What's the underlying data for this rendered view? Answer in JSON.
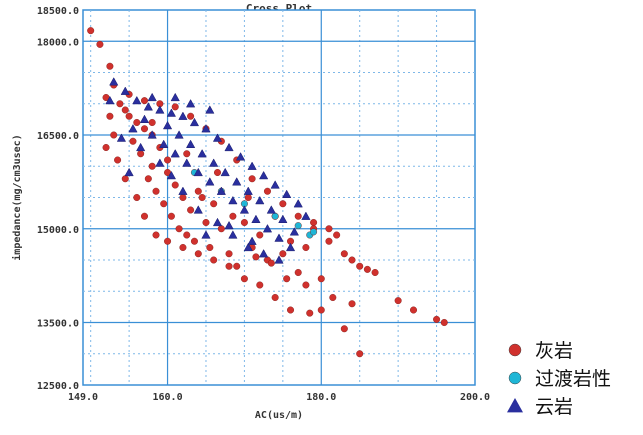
{
  "chart_data": {
    "type": "scatter",
    "title": "Cross Plot",
    "xlabel": "AC(us/m)",
    "ylabel": "impedance(mg/cm3usec)",
    "xlim": [
      149.0,
      200.0
    ],
    "ylim": [
      12500.0,
      18500.0
    ],
    "x_ticks": [
      "149.0",
      "160.0",
      "180.0",
      "200.0"
    ],
    "y_ticks": [
      "18500.0",
      "18000.0",
      "16500.0",
      "15000.0",
      "13500.0",
      "12500.0"
    ],
    "grid": true,
    "legend_position": "bottom-right-outside",
    "series": [
      {
        "name": "灰岩",
        "marker": "circle",
        "color": "#d0312d",
        "points": [
          [
            150.0,
            18170
          ],
          [
            151.2,
            17950
          ],
          [
            152.5,
            17600
          ],
          [
            153.0,
            17300
          ],
          [
            152.0,
            17100
          ],
          [
            153.8,
            17000
          ],
          [
            154.5,
            16900
          ],
          [
            155.0,
            16800
          ],
          [
            156.0,
            16700
          ],
          [
            155.5,
            16400
          ],
          [
            157.0,
            16600
          ],
          [
            156.5,
            16200
          ],
          [
            158.0,
            16500
          ],
          [
            158.0,
            16000
          ],
          [
            157.5,
            15800
          ],
          [
            159.0,
            16300
          ],
          [
            158.5,
            15600
          ],
          [
            159.5,
            15400
          ],
          [
            160.0,
            15900
          ],
          [
            160.5,
            15200
          ],
          [
            161.0,
            15700
          ],
          [
            161.5,
            15000
          ],
          [
            162.0,
            15500
          ],
          [
            162.5,
            14900
          ],
          [
            163.0,
            15300
          ],
          [
            163.5,
            14800
          ],
          [
            164.0,
            15600
          ],
          [
            165.0,
            15100
          ],
          [
            165.5,
            14700
          ],
          [
            166.0,
            15400
          ],
          [
            167.0,
            15000
          ],
          [
            168.0,
            14600
          ],
          [
            168.5,
            15200
          ],
          [
            169.0,
            14400
          ],
          [
            170.0,
            15100
          ],
          [
            171.0,
            14700
          ],
          [
            172.0,
            14900
          ],
          [
            173.0,
            14500
          ],
          [
            174.0,
            15200
          ],
          [
            175.0,
            14600
          ],
          [
            176.0,
            14800
          ],
          [
            177.0,
            14300
          ],
          [
            178.0,
            14700
          ],
          [
            179.0,
            15000
          ],
          [
            180.0,
            14200
          ],
          [
            181.0,
            14800
          ],
          [
            182.0,
            14900
          ],
          [
            183.0,
            14600
          ],
          [
            184.0,
            14500
          ],
          [
            185.0,
            14400
          ],
          [
            186.0,
            14350
          ],
          [
            187.0,
            14300
          ],
          [
            180.0,
            13700
          ],
          [
            181.5,
            13900
          ],
          [
            178.5,
            13650
          ],
          [
            176.0,
            13700
          ],
          [
            183.0,
            13400
          ],
          [
            185.0,
            13000
          ],
          [
            184.0,
            13800
          ],
          [
            174.0,
            13900
          ],
          [
            172.0,
            14100
          ],
          [
            170.0,
            14200
          ],
          [
            168.0,
            14400
          ],
          [
            166.0,
            14500
          ],
          [
            164.0,
            14600
          ],
          [
            162.0,
            14700
          ],
          [
            160.0,
            14800
          ],
          [
            158.5,
            14900
          ],
          [
            157.0,
            15200
          ],
          [
            156.0,
            15500
          ],
          [
            154.5,
            15800
          ],
          [
            153.5,
            16100
          ],
          [
            153.0,
            16500
          ],
          [
            152.5,
            16800
          ],
          [
            152.0,
            16300
          ],
          [
            155.0,
            17150
          ],
          [
            157.0,
            17050
          ],
          [
            159.0,
            17000
          ],
          [
            161.0,
            16950
          ],
          [
            163.0,
            16800
          ],
          [
            165.0,
            16600
          ],
          [
            167.0,
            16400
          ],
          [
            169.0,
            16100
          ],
          [
            171.0,
            15800
          ],
          [
            173.0,
            15600
          ],
          [
            175.0,
            15400
          ],
          [
            177.0,
            15200
          ],
          [
            179.0,
            15100
          ],
          [
            181.0,
            15000
          ],
          [
            170.5,
            15500
          ],
          [
            166.5,
            15900
          ],
          [
            162.5,
            16200
          ],
          [
            158.0,
            16700
          ],
          [
            160.0,
            16100
          ],
          [
            164.5,
            15500
          ],
          [
            196.0,
            13500
          ],
          [
            195.0,
            13550
          ],
          [
            192.0,
            13700
          ],
          [
            190.0,
            13850
          ],
          [
            178.0,
            14100
          ],
          [
            175.5,
            14200
          ],
          [
            173.5,
            14450
          ],
          [
            171.5,
            14550
          ]
        ]
      },
      {
        "name": "过渡岩性",
        "marker": "circle",
        "color": "#1fb6d6",
        "points": [
          [
            163.5,
            15900
          ],
          [
            167.0,
            15600
          ],
          [
            170.0,
            15400
          ],
          [
            174.0,
            15200
          ],
          [
            177.0,
            15050
          ],
          [
            178.5,
            14900
          ],
          [
            179.0,
            14950
          ]
        ]
      },
      {
        "name": "云岩",
        "marker": "triangle",
        "color": "#2a2f9e",
        "points": [
          [
            154.5,
            17200
          ],
          [
            156.0,
            17050
          ],
          [
            157.5,
            16950
          ],
          [
            159.0,
            16900
          ],
          [
            160.5,
            16850
          ],
          [
            162.0,
            16800
          ],
          [
            163.5,
            16700
          ],
          [
            165.0,
            16600
          ],
          [
            166.5,
            16450
          ],
          [
            168.0,
            16300
          ],
          [
            169.5,
            16150
          ],
          [
            171.0,
            16000
          ],
          [
            172.5,
            15850
          ],
          [
            174.0,
            15700
          ],
          [
            175.5,
            15550
          ],
          [
            177.0,
            15400
          ],
          [
            158.0,
            16500
          ],
          [
            159.5,
            16350
          ],
          [
            161.0,
            16200
          ],
          [
            162.5,
            16050
          ],
          [
            164.0,
            15900
          ],
          [
            165.5,
            15750
          ],
          [
            167.0,
            15600
          ],
          [
            168.5,
            15450
          ],
          [
            170.0,
            15300
          ],
          [
            171.5,
            15150
          ],
          [
            173.0,
            15000
          ],
          [
            174.5,
            14850
          ],
          [
            176.0,
            14700
          ],
          [
            160.0,
            16650
          ],
          [
            161.5,
            16500
          ],
          [
            163.0,
            16350
          ],
          [
            164.5,
            16200
          ],
          [
            166.0,
            16050
          ],
          [
            167.5,
            15900
          ],
          [
            169.0,
            15750
          ],
          [
            170.5,
            15600
          ],
          [
            172.0,
            15450
          ],
          [
            173.5,
            15300
          ],
          [
            175.0,
            15150
          ],
          [
            157.0,
            16750
          ],
          [
            155.5,
            16600
          ],
          [
            154.0,
            16450
          ],
          [
            153.0,
            17350
          ],
          [
            152.5,
            17050
          ],
          [
            161.0,
            17100
          ],
          [
            163.0,
            17000
          ],
          [
            165.5,
            16900
          ],
          [
            162.0,
            15600
          ],
          [
            164.0,
            15300
          ],
          [
            166.5,
            15100
          ],
          [
            168.5,
            14900
          ],
          [
            170.5,
            14700
          ],
          [
            172.5,
            14600
          ],
          [
            174.5,
            14500
          ],
          [
            160.5,
            15850
          ],
          [
            159.0,
            16050
          ],
          [
            165.0,
            14900
          ],
          [
            168.0,
            15050
          ],
          [
            171.0,
            14800
          ],
          [
            176.5,
            14950
          ],
          [
            178.0,
            15200
          ],
          [
            158.0,
            17100
          ],
          [
            156.5,
            16300
          ],
          [
            155.0,
            15900
          ]
        ]
      }
    ]
  }
}
